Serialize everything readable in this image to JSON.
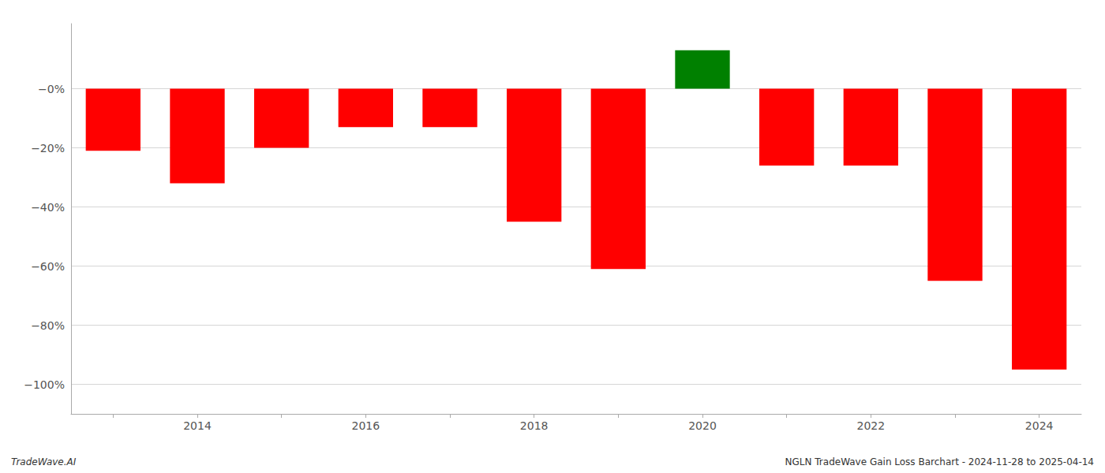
{
  "chart_data": {
    "type": "bar",
    "categories": [
      null,
      "2014",
      null,
      "2016",
      null,
      "2018",
      null,
      "2020",
      null,
      "2022",
      null,
      "2024"
    ],
    "values": [
      -21,
      -32,
      -20,
      -13,
      -13,
      -45,
      -61,
      13,
      -26,
      -26,
      -65,
      -95
    ],
    "colors": [
      "#ff0000",
      "#ff0000",
      "#ff0000",
      "#ff0000",
      "#ff0000",
      "#ff0000",
      "#ff0000",
      "#008000",
      "#ff0000",
      "#ff0000",
      "#ff0000",
      "#ff0000"
    ],
    "ylim": [
      -110,
      22
    ],
    "yticks": [
      {
        "value": 0,
        "label": "−0%"
      },
      {
        "value": -20,
        "label": "−20%"
      },
      {
        "value": -40,
        "label": "−40%"
      },
      {
        "value": -60,
        "label": "−60%"
      },
      {
        "value": -80,
        "label": "−80%"
      },
      {
        "value": -100,
        "label": "−100%"
      }
    ],
    "grid": true,
    "annotations": [
      "TradeWave.AI",
      "NGLN TradeWave Gain Loss Barchart - 2024-11-28 to 2025-04-14"
    ]
  }
}
